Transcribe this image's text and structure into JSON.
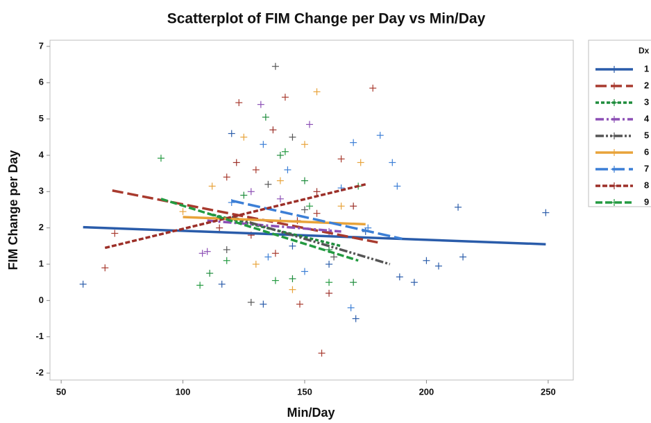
{
  "chart_data": {
    "type": "scatter",
    "title": "Scatterplot of FIM Change per Day vs Min/Day",
    "x_label": "Min/Day",
    "y_label": "FIM Change per Day",
    "legend_title": "Dx",
    "xlim": [
      45.4,
      260.3
    ],
    "ylim": [
      -2.19,
      7.17
    ],
    "xticks": [
      50,
      100,
      150,
      200,
      250
    ],
    "yticks": [
      -2,
      -1,
      0,
      1,
      2,
      3,
      4,
      5,
      6,
      7
    ],
    "grid": false,
    "series": [
      {
        "name": "1",
        "color": "#2a5caa",
        "dash": "none",
        "x": [
          59,
          116,
          133,
          120,
          171,
          189,
          195,
          200,
          205,
          213,
          215,
          249,
          145,
          160,
          175,
          140
        ],
        "y": [
          0.45,
          0.45,
          -0.1,
          4.6,
          -0.5,
          0.65,
          0.5,
          1.1,
          0.95,
          2.57,
          1.2,
          2.42,
          1.5,
          1.0,
          1.9,
          2.2
        ],
        "fit_x": [
          59,
          249
        ],
        "fit_y": [
          2.02,
          1.55
        ]
      },
      {
        "name": "2",
        "color": "#a83a2e",
        "dash": "16 6",
        "x": [
          68,
          72,
          157,
          178,
          142,
          123,
          148,
          165,
          130,
          155,
          138,
          118
        ],
        "y": [
          0.9,
          1.85,
          -1.45,
          5.85,
          5.6,
          5.45,
          -0.1,
          3.9,
          3.6,
          2.4,
          1.3,
          3.4
        ],
        "fit_x": [
          71,
          180
        ],
        "fit_y": [
          3.03,
          1.6
        ]
      },
      {
        "name": "3",
        "color": "#1e8c3c",
        "dash": "5 3",
        "x": [
          134,
          111,
          145,
          160,
          125,
          150,
          170,
          140
        ],
        "y": [
          5.05,
          0.75,
          0.6,
          1.4,
          2.9,
          3.3,
          0.5,
          4.0
        ],
        "fit_x": [
          110,
          165
        ],
        "fit_y": [
          2.4,
          1.5
        ]
      },
      {
        "name": "4",
        "color": "#8c4fb5",
        "dash": "12 4 3 4",
        "x": [
          132,
          108,
          110,
          140,
          152,
          160,
          128
        ],
        "y": [
          5.4,
          1.3,
          1.35,
          2.8,
          4.85,
          1.9,
          3.0
        ],
        "fit_x": [
          110,
          165
        ],
        "fit_y": [
          2.2,
          1.9
        ]
      },
      {
        "name": "5",
        "color": "#555555",
        "dash": "12 3 3 3 3 3",
        "x": [
          138,
          128,
          118,
          145,
          162,
          135,
          150
        ],
        "y": [
          6.45,
          -0.05,
          1.4,
          4.5,
          1.2,
          3.2,
          2.5
        ],
        "fit_x": [
          120,
          185
        ],
        "fit_y": [
          2.3,
          1.0
        ]
      },
      {
        "name": "6",
        "color": "#e8a33a",
        "dash": "none",
        "x": [
          155,
          100,
          112,
          125,
          140,
          150,
          165,
          173,
          130,
          145
        ],
        "y": [
          5.75,
          2.45,
          3.15,
          4.5,
          3.3,
          4.3,
          2.6,
          3.8,
          1.0,
          0.3
        ],
        "fit_x": [
          100,
          175
        ],
        "fit_y": [
          2.3,
          2.1
        ]
      },
      {
        "name": "7",
        "color": "#3c7fd6",
        "dash": "18 6",
        "x": [
          181,
          186,
          188,
          170,
          120,
          133,
          169,
          165,
          150,
          143,
          176,
          135
        ],
        "y": [
          4.55,
          3.8,
          3.15,
          4.35,
          2.7,
          4.3,
          -0.2,
          3.1,
          0.8,
          3.6,
          2.0,
          1.2
        ],
        "fit_x": [
          120,
          190
        ],
        "fit_y": [
          2.75,
          1.7
        ]
      },
      {
        "name": "8",
        "color": "#9c2f28",
        "dash": "7 3",
        "x": [
          122,
          137,
          147,
          160,
          170,
          155,
          128,
          115
        ],
        "y": [
          3.8,
          4.7,
          2.2,
          0.2,
          2.6,
          3.0,
          1.8,
          2.0
        ],
        "fit_x": [
          68,
          175
        ],
        "fit_y": [
          1.45,
          3.2
        ]
      },
      {
        "name": "9",
        "color": "#239a40",
        "dash": "10 4",
        "x": [
          91,
          107,
          118,
          142,
          160,
          172,
          138,
          152
        ],
        "y": [
          3.92,
          0.42,
          1.1,
          4.1,
          0.5,
          3.15,
          0.55,
          2.6
        ],
        "fit_x": [
          91,
          172
        ],
        "fit_y": [
          2.8,
          1.1
        ]
      }
    ]
  }
}
